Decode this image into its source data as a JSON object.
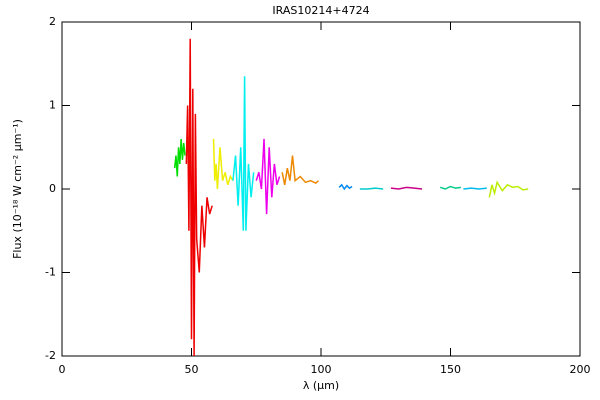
{
  "chart_data": {
    "type": "line",
    "title": "IRAS10214+4724",
    "x_label": "λ (μm)",
    "y_label": "Flux (10⁻¹⁸ W cm⁻² μm⁻¹)",
    "xlim": [
      0,
      200
    ],
    "xticks": [
      0,
      50,
      100,
      150,
      200
    ],
    "ylim": [
      -2,
      2
    ],
    "yticks": [
      -2,
      -1,
      0,
      1,
      2
    ],
    "series": [
      {
        "color": "#00dd00",
        "x": [
          43.5,
          44,
          44.5,
          45,
          45.5,
          46,
          46.5,
          47,
          47.5
        ],
        "values": [
          0.25,
          0.4,
          0.15,
          0.5,
          0.3,
          0.6,
          0.35,
          0.55,
          0.4
        ]
      },
      {
        "color": "#ee0000",
        "x": [
          48,
          48.5,
          49,
          49.5,
          50,
          50.5,
          51,
          51.5,
          52,
          53,
          54,
          55,
          56,
          57,
          58
        ],
        "values": [
          0.3,
          1.0,
          -0.5,
          1.8,
          -1.8,
          1.2,
          -2.0,
          0.9,
          -0.6,
          -1.0,
          -0.2,
          -0.7,
          -0.1,
          -0.3,
          -0.2
        ]
      },
      {
        "color": "#eeee00",
        "x": [
          58.5,
          59,
          59.5,
          60,
          61,
          62,
          63,
          64,
          65,
          66
        ],
        "values": [
          0.6,
          0.1,
          0.3,
          0.0,
          0.5,
          0.1,
          0.2,
          0.05,
          0.15,
          0.1
        ]
      },
      {
        "color": "#00eeee",
        "x": [
          66,
          67,
          68,
          69,
          70,
          70.5,
          71,
          72,
          73,
          74
        ],
        "values": [
          0.1,
          0.4,
          -0.2,
          0.5,
          -0.5,
          1.35,
          -0.5,
          0.3,
          -0.1,
          0.2
        ]
      },
      {
        "color": "#ee00ee",
        "x": [
          75,
          76,
          77,
          78,
          79,
          80,
          81,
          82,
          83,
          84
        ],
        "values": [
          0.1,
          0.2,
          0.0,
          0.6,
          -0.3,
          0.5,
          -0.1,
          0.3,
          0.05,
          0.15
        ]
      },
      {
        "color": "#ee8800",
        "x": [
          85,
          86,
          87,
          88,
          89,
          90,
          92,
          94,
          96,
          98,
          99
        ],
        "values": [
          0.2,
          0.05,
          0.25,
          0.1,
          0.4,
          0.1,
          0.15,
          0.08,
          0.1,
          0.07,
          0.1
        ]
      },
      {
        "color": "#0088ee",
        "x": [
          107,
          108,
          109,
          110,
          111,
          112
        ],
        "values": [
          0.02,
          0.05,
          0.0,
          0.04,
          0.01,
          0.03
        ]
      },
      {
        "color": "#00cccc",
        "x": [
          115,
          118,
          121,
          124
        ],
        "values": [
          0,
          0,
          0.01,
          0
        ]
      },
      {
        "color": "#cc0088",
        "x": [
          127,
          130,
          133,
          136,
          139
        ],
        "values": [
          0.01,
          0,
          0.02,
          0.01,
          0
        ]
      },
      {
        "color": "#00cc88",
        "x": [
          146,
          148,
          150,
          152,
          154
        ],
        "values": [
          0.02,
          0,
          0.03,
          0.01,
          0.02
        ]
      },
      {
        "color": "#00bbee",
        "x": [
          155,
          158,
          161,
          164
        ],
        "values": [
          0,
          0.01,
          0,
          0.01
        ]
      },
      {
        "color": "#bbee00",
        "x": [
          165,
          166,
          167,
          168,
          170,
          172,
          174,
          176,
          178,
          180
        ],
        "values": [
          -0.1,
          0.05,
          -0.05,
          0.08,
          -0.02,
          0.05,
          0.02,
          0.03,
          -0.01,
          0
        ]
      }
    ]
  }
}
